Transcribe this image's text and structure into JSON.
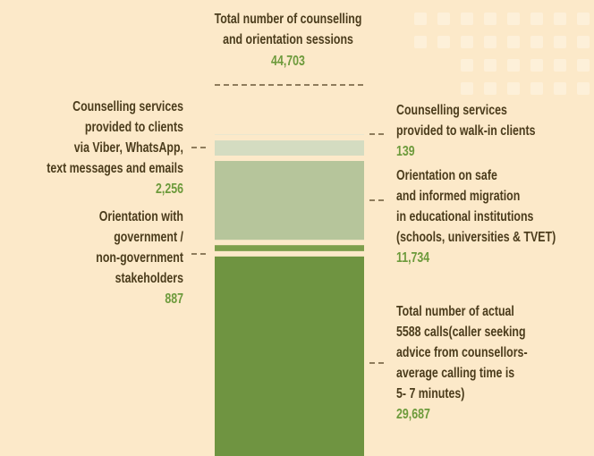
{
  "chart_data": {
    "type": "stacked_bar",
    "title": [
      "Total number of counselling",
      "and orientation sessions"
    ],
    "total": {
      "value": 44703,
      "label": "44,703"
    },
    "categories": [
      [
        "Total  number of actual",
        "5588 calls(caller seeking",
        "advice from counsellors-",
        "average calling time is",
        "5- 7 minutes)"
      ],
      [
        "Orientation with",
        "government /",
        "non-government",
        "stakeholders"
      ],
      [
        "Orientation on safe",
        "and informed migration",
        "in educational institutions",
        "(schools, universities & TVET)"
      ],
      [
        "Counselling services",
        "provided to clients",
        "via Viber, WhatsApp,",
        "text messages and emails"
      ],
      [
        "Counselling services",
        "provided to walk-in clients"
      ]
    ],
    "values": [
      29687,
      887,
      11734,
      2256,
      139
    ],
    "value_labels": [
      "29,687",
      "887",
      "11,734",
      "2,256",
      "139"
    ],
    "colors": [
      "#6f9441",
      "#7d9f4c",
      "#b6c59b",
      "#d4dcc1",
      "#ebe7cf"
    ]
  }
}
